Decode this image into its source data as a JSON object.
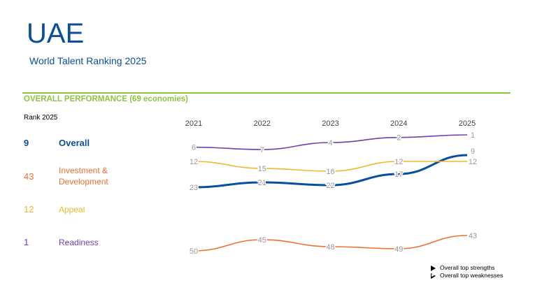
{
  "header": {
    "title": "UAE",
    "subtitle": "World Talent Ranking 2025"
  },
  "section": {
    "title": "OVERALL PERFORMANCE  (69 economies)",
    "rank_label": "Rank 2025"
  },
  "ranks": [
    {
      "value": "9",
      "label": "Overall",
      "color": "#0a4f9e",
      "bold": true
    },
    {
      "value": "43",
      "label": "Investment & Development",
      "color": "#f07030",
      "bold": false
    },
    {
      "value": "12",
      "label": "Appeal",
      "color": "#f0b830",
      "bold": false
    },
    {
      "value": "1",
      "label": "Readiness",
      "color": "#7040b0",
      "bold": false
    }
  ],
  "legend": {
    "strengths": "Overall top strengths",
    "weaknesses": "Overall top weaknesses"
  },
  "chart_data": {
    "type": "line",
    "x": [
      "2021",
      "2022",
      "2023",
      "2024",
      "2025"
    ],
    "series": [
      {
        "name": "Overall",
        "color": "#0a4f9e",
        "values": [
          23,
          21,
          22,
          17,
          9
        ],
        "width": 3
      },
      {
        "name": "Investment & Development",
        "color": "#f07030",
        "values": [
          50,
          45,
          48,
          49,
          43
        ],
        "width": 1.6
      },
      {
        "name": "Appeal",
        "color": "#f0b830",
        "values": [
          12,
          15,
          16,
          12,
          12
        ],
        "width": 1.6
      },
      {
        "name": "Readiness",
        "color": "#7040b0",
        "values": [
          6,
          7,
          4,
          2,
          1
        ],
        "width": 1.6
      }
    ],
    "label_color": "#999999",
    "y_inverted": true
  }
}
